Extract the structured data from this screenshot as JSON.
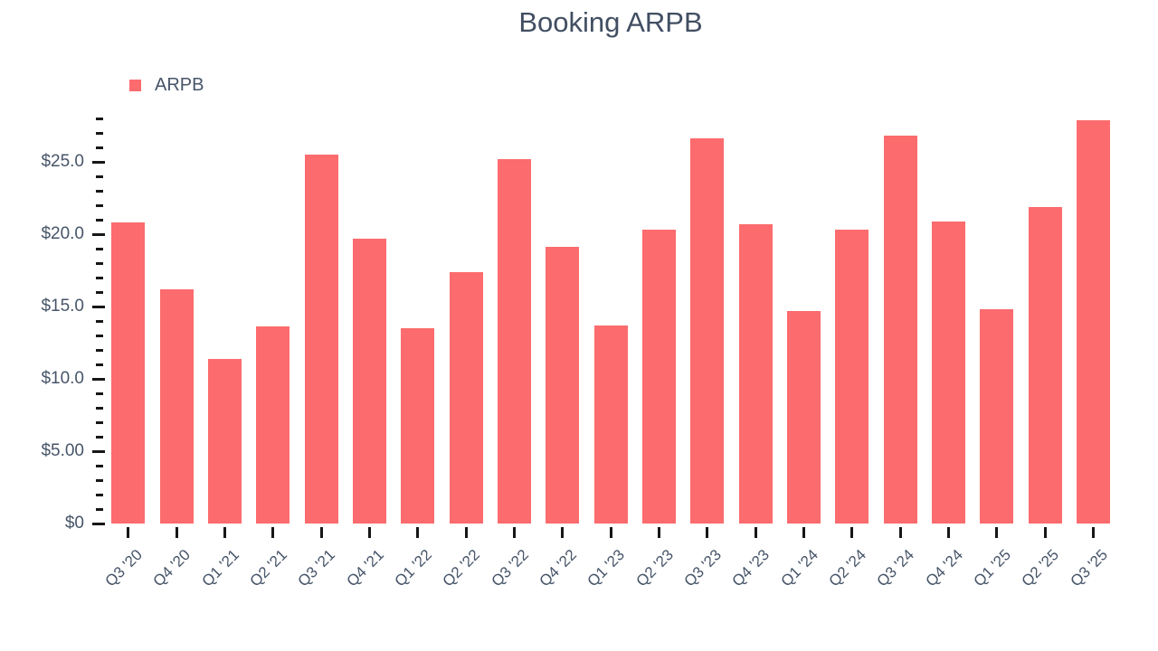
{
  "title": "Booking ARPB",
  "legend": {
    "label": "ARPB"
  },
  "colors": {
    "background": "#ffffff",
    "bar": "#fc6b6d",
    "axis_text": "#475569",
    "title_text": "#414e62",
    "tick": "#171717"
  },
  "chart_data": {
    "type": "bar",
    "title": "Booking ARPB",
    "xlabel": "",
    "ylabel": "",
    "categories": [
      "Q3 '20",
      "Q4 '20",
      "Q1 '21",
      "Q2 '21",
      "Q3 '21",
      "Q4 '21",
      "Q1 '22",
      "Q2 '22",
      "Q3 '22",
      "Q4 '22",
      "Q1 '23",
      "Q2 '23",
      "Q3 '23",
      "Q4 '23",
      "Q1 '24",
      "Q2 '24",
      "Q3 '24",
      "Q4 '24",
      "Q1 '25",
      "Q2 '25",
      "Q3 '25"
    ],
    "series": [
      {
        "name": "ARPB",
        "color": "#fc6b6d",
        "values": [
          20.8,
          16.2,
          11.4,
          13.6,
          25.5,
          19.7,
          13.5,
          17.4,
          25.2,
          19.1,
          13.7,
          20.3,
          26.6,
          20.7,
          14.7,
          20.3,
          26.8,
          20.9,
          14.8,
          21.9,
          27.9
        ]
      }
    ],
    "ylim": [
      0,
      28
    ],
    "y_major_ticks": [
      {
        "value": 0,
        "label": "$0"
      },
      {
        "value": 5,
        "label": "$5.00"
      },
      {
        "value": 10,
        "label": "$10.0"
      },
      {
        "value": 15,
        "label": "$15.0"
      },
      {
        "value": 20,
        "label": "$20.0"
      },
      {
        "value": 25,
        "label": "$25.0"
      }
    ],
    "y_minor_tick_step": 1,
    "y_major_tick_step": 5,
    "grid": false,
    "legend_position": "top-left",
    "x_label_rotation": -45
  }
}
